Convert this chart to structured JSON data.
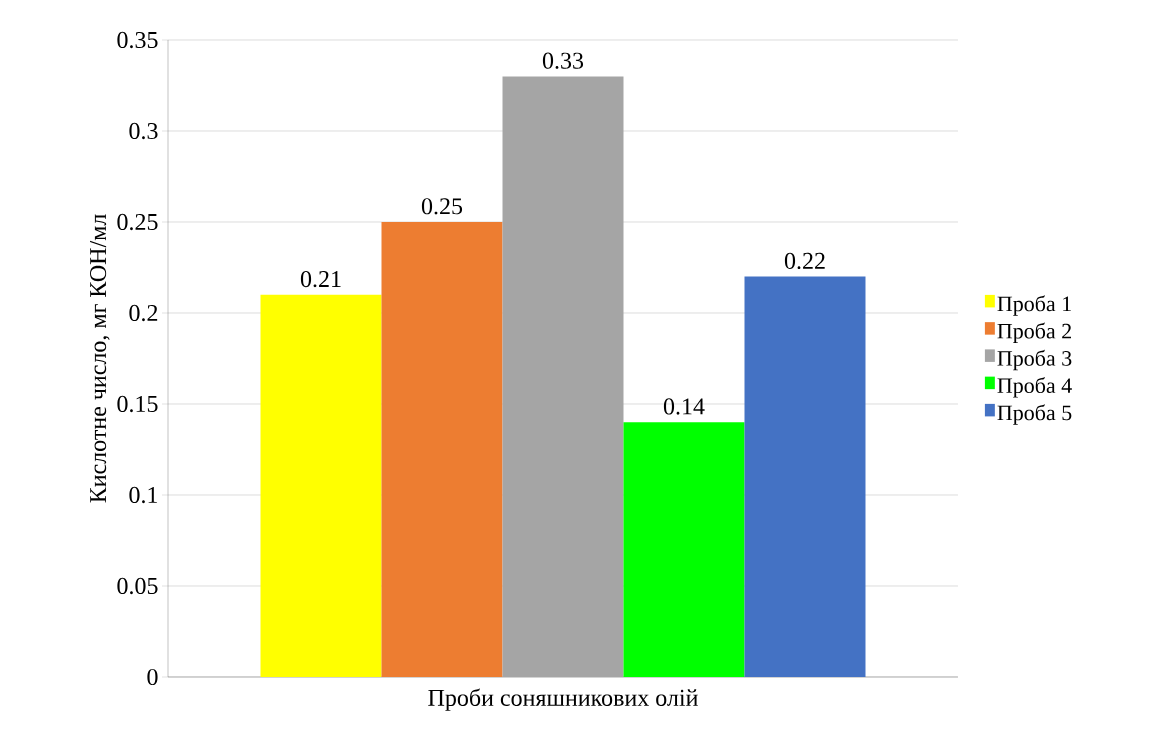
{
  "chart_data": {
    "type": "bar",
    "xlabel": "Проби соняшникових олій",
    "ylabel": "Кислотне число, мг КОН/мл",
    "categories": [
      null
    ],
    "series": [
      {
        "name": "Проба 1",
        "color": "#ffff00",
        "values": [
          0.21
        ]
      },
      {
        "name": "Проба 2",
        "color": "#ed7d31",
        "values": [
          0.25
        ]
      },
      {
        "name": "Проба 3",
        "color": "#a5a5a5",
        "values": [
          0.33
        ]
      },
      {
        "name": "Проба 4",
        "color": "#00ff00",
        "values": [
          0.14
        ]
      },
      {
        "name": "Проба 5",
        "color": "#4472c4",
        "values": [
          0.22
        ]
      }
    ],
    "ylim": [
      0,
      0.35
    ],
    "yticks": [
      0,
      0.05,
      0.1,
      0.15,
      0.2,
      0.25,
      0.3,
      0.35
    ],
    "grid": "y",
    "legend": "right",
    "data_labels": true
  }
}
